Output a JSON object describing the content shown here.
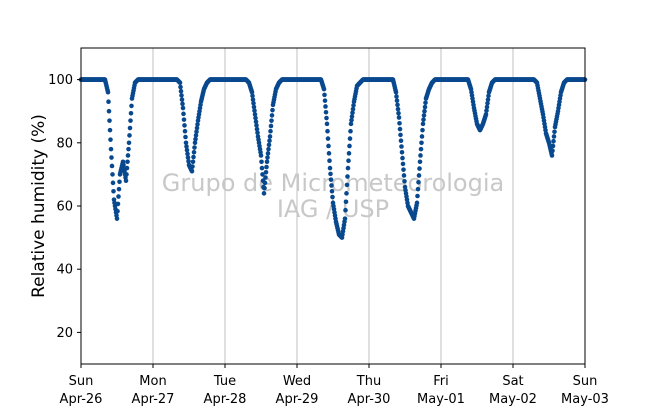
{
  "chart_data": {
    "type": "scatter",
    "ylabel": "Relative humidity (%)",
    "xlabel": "",
    "ylim": [
      10,
      110
    ],
    "xlim": [
      "2020-04-26",
      "2020-05-03"
    ],
    "y_ticks": [
      20,
      40,
      60,
      80,
      100
    ],
    "x_ticks": [
      {
        "day": "Sun",
        "date": "Apr-26"
      },
      {
        "day": "Mon",
        "date": "Apr-27"
      },
      {
        "day": "Tue",
        "date": "Apr-28"
      },
      {
        "day": "Wed",
        "date": "Apr-29"
      },
      {
        "day": "Thu",
        "date": "Apr-30"
      },
      {
        "day": "Fri",
        "date": "May-01"
      },
      {
        "day": "Sat",
        "date": "May-02"
      },
      {
        "day": "Sun",
        "date": "May-03"
      }
    ],
    "grid": "vertical",
    "marker_color": "#08488e",
    "watermark": [
      "Grupo de Micrometeorologia",
      "IAG / USP"
    ],
    "series": [
      {
        "x": [
          "2020-04-26 00:00",
          "2020-04-26 03:00",
          "2020-04-26 06:00",
          "2020-04-26 07:00",
          "2020-04-26 08:00",
          "2020-04-26 09:00",
          "2020-04-26 10:00",
          "2020-04-26 11:00",
          "2020-04-26 12:00",
          "2020-04-26 13:00",
          "2020-04-26 14:00",
          "2020-04-26 15:00",
          "2020-04-26 16:00",
          "2020-04-26 17:00",
          "2020-04-26 18:00",
          "2020-04-26 19:00",
          "2020-04-26 20:00",
          "2020-04-26 21:00",
          "2020-04-26 22:00",
          "2020-04-26 23:00",
          "2020-04-27 00:00",
          "2020-04-27 03:00",
          "2020-04-27 06:00",
          "2020-04-27 07:00",
          "2020-04-27 08:00",
          "2020-04-27 09:00",
          "2020-04-27 10:00",
          "2020-04-27 11:00",
          "2020-04-27 12:00",
          "2020-04-27 13:00",
          "2020-04-27 14:00",
          "2020-04-27 15:00",
          "2020-04-27 16:00",
          "2020-04-27 17:00",
          "2020-04-27 18:00",
          "2020-04-27 19:00",
          "2020-04-27 20:00",
          "2020-04-27 21:00",
          "2020-04-27 22:00",
          "2020-04-27 23:00",
          "2020-04-28 00:00",
          "2020-04-28 03:00",
          "2020-04-28 06:00",
          "2020-04-28 07:00",
          "2020-04-28 08:00",
          "2020-04-28 09:00",
          "2020-04-28 10:00",
          "2020-04-28 11:00",
          "2020-04-28 12:00",
          "2020-04-28 13:00",
          "2020-04-28 14:00",
          "2020-04-28 15:00",
          "2020-04-28 16:00",
          "2020-04-28 17:00",
          "2020-04-28 18:00",
          "2020-04-28 19:00",
          "2020-04-28 20:00",
          "2020-04-28 21:00",
          "2020-04-28 22:00",
          "2020-04-28 23:00",
          "2020-04-29 00:00",
          "2020-04-29 03:00",
          "2020-04-29 06:00",
          "2020-04-29 07:00",
          "2020-04-29 08:00",
          "2020-04-29 09:00",
          "2020-04-29 10:00",
          "2020-04-29 11:00",
          "2020-04-29 12:00",
          "2020-04-29 13:00",
          "2020-04-29 14:00",
          "2020-04-29 15:00",
          "2020-04-29 16:00",
          "2020-04-29 17:00",
          "2020-04-29 18:00",
          "2020-04-29 19:00",
          "2020-04-29 20:00",
          "2020-04-29 21:00",
          "2020-04-29 22:00",
          "2020-04-29 23:00",
          "2020-04-30 00:00",
          "2020-04-30 03:00",
          "2020-04-30 06:00",
          "2020-04-30 07:00",
          "2020-04-30 08:00",
          "2020-04-30 09:00",
          "2020-04-30 10:00",
          "2020-04-30 11:00",
          "2020-04-30 12:00",
          "2020-04-30 13:00",
          "2020-04-30 14:00",
          "2020-04-30 15:00",
          "2020-04-30 16:00",
          "2020-04-30 17:00",
          "2020-04-30 18:00",
          "2020-04-30 19:00",
          "2020-04-30 20:00",
          "2020-04-30 21:00",
          "2020-04-30 22:00",
          "2020-04-30 23:00",
          "2020-05-01 00:00",
          "2020-05-01 03:00",
          "2020-05-01 06:00",
          "2020-05-01 07:00",
          "2020-05-01 08:00",
          "2020-05-01 09:00",
          "2020-05-01 10:00",
          "2020-05-01 11:00",
          "2020-05-01 12:00",
          "2020-05-01 13:00",
          "2020-05-01 14:00",
          "2020-05-01 15:00",
          "2020-05-01 16:00",
          "2020-05-01 17:00",
          "2020-05-01 18:00",
          "2020-05-01 19:00",
          "2020-05-01 20:00",
          "2020-05-01 21:00",
          "2020-05-01 22:00",
          "2020-05-01 23:00",
          "2020-05-02 00:00",
          "2020-05-02 03:00",
          "2020-05-02 06:00",
          "2020-05-02 07:00",
          "2020-05-02 08:00",
          "2020-05-02 09:00",
          "2020-05-02 10:00",
          "2020-05-02 11:00",
          "2020-05-02 12:00",
          "2020-05-02 13:00",
          "2020-05-02 14:00",
          "2020-05-02 15:00",
          "2020-05-02 16:00",
          "2020-05-02 17:00",
          "2020-05-02 18:00",
          "2020-05-02 19:00",
          "2020-05-02 20:00",
          "2020-05-02 21:00",
          "2020-05-02 22:00",
          "2020-05-02 23:00",
          "2020-05-03 00:00"
        ],
        "y": [
          100,
          100,
          100,
          100,
          100,
          96,
          78,
          62,
          56,
          70,
          74,
          68,
          80,
          94,
          99,
          100,
          100,
          100,
          100,
          100,
          100,
          100,
          100,
          100,
          100,
          99,
          91,
          80,
          73,
          71,
          80,
          87,
          93,
          97,
          99,
          100,
          100,
          100,
          100,
          100,
          100,
          100,
          100,
          100,
          99,
          96,
          89,
          82,
          76,
          64,
          74,
          82,
          92,
          97,
          99,
          100,
          100,
          100,
          100,
          100,
          100,
          100,
          100,
          100,
          100,
          97,
          86,
          72,
          61,
          55,
          51,
          50,
          56,
          72,
          86,
          93,
          98,
          99,
          100,
          100,
          100,
          100,
          100,
          100,
          100,
          96,
          88,
          77,
          66,
          60,
          58,
          56,
          61,
          74,
          86,
          94,
          97,
          99,
          100,
          100,
          100,
          100,
          100,
          100,
          100,
          100,
          97,
          91,
          86,
          84,
          86,
          89,
          96,
          99,
          100,
          100,
          100,
          100,
          100,
          100,
          100,
          100,
          100,
          100,
          99,
          94,
          89,
          83,
          80,
          76,
          85,
          90,
          96,
          99,
          100,
          100,
          100,
          100,
          100,
          100,
          100
        ]
      }
    ]
  }
}
